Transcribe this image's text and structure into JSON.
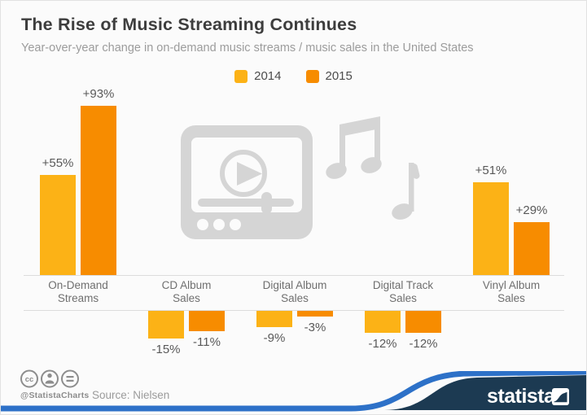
{
  "header": {
    "title": "The Rise of Music Streaming Continues",
    "subtitle": "Year-over-year change in on-demand music streams / music sales in the United States"
  },
  "chart_data": {
    "type": "bar",
    "categories": [
      "On-Demand\nStreams",
      "CD Album\nSales",
      "Digital Album\nSales",
      "Digital Track\nSales",
      "Vinyl Album\nSales"
    ],
    "series": [
      {
        "name": "2014",
        "color": "#FCB216",
        "values": [
          55,
          -15,
          -9,
          -12,
          51
        ],
        "labels": [
          "+55%",
          "-15%",
          "-9%",
          "-12%",
          "+51%"
        ]
      },
      {
        "name": "2015",
        "color": "#F78C00",
        "values": [
          93,
          -11,
          -3,
          -12,
          29
        ],
        "labels": [
          "+93%",
          "-11%",
          "-3%",
          "-12%",
          "+29%"
        ]
      }
    ],
    "unit": "percent",
    "ylabel": "",
    "xlabel": "",
    "grid": false,
    "legend_position": "top-center"
  },
  "footer": {
    "handle": "@StatistaCharts",
    "source": "Source: Nielsen",
    "brand": "statista"
  },
  "colors": {
    "yellow_2014": "#FCB216",
    "orange_2015": "#F78C00",
    "watermark_gray": "#d5d5d5",
    "brand_navy": "#1C3A52",
    "brand_blue": "#2D71C8",
    "axis_line": "#dcdcdc",
    "background": "#fbfbfb"
  }
}
